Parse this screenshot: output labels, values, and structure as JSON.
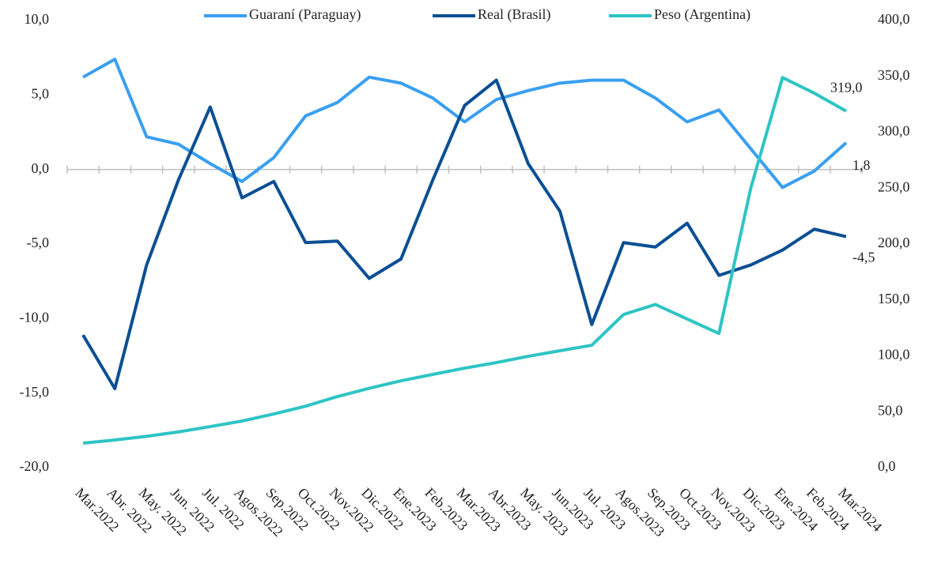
{
  "chart_data": {
    "type": "line",
    "categories": [
      "Mar.2022",
      "Abr. 2022",
      "May. 2022",
      "Jun. 2022",
      "Jul. 2022",
      "Agos.2022",
      "Sep.2022",
      "Oct.2022",
      "Nov.2022",
      "Dic.2022",
      "Ene.2023",
      "Feb.2023",
      "Mar.2023",
      "Abr.2023",
      "May. 2023",
      "Jun.2023",
      "Jul. 2023",
      "Agos.2023",
      "Sep.2023",
      "Oct.2023",
      "Nov.2023",
      "Dic.2023",
      "Ene.2024",
      "Feb.2024",
      "Mar.2024"
    ],
    "series": [
      {
        "name": "Guaraní (Paraguay)",
        "color": "#3a9ff0",
        "values": [
          6.2,
          7.4,
          2.2,
          1.7,
          0.4,
          -0.8,
          0.8,
          3.6,
          4.5,
          6.2,
          5.8,
          4.8,
          3.2,
          4.7,
          5.3,
          5.8,
          6.0,
          6.0,
          4.8,
          3.2,
          4.0,
          1.4,
          -1.2,
          -0.1,
          1.8
        ],
        "value_labels": [
          null,
          null,
          null,
          null,
          null,
          null,
          null,
          null,
          null,
          null,
          null,
          null,
          null,
          null,
          null,
          null,
          null,
          null,
          null,
          null,
          null,
          null,
          null,
          null,
          "1,8"
        ]
      },
      {
        "name": "Real (Brasil)",
        "color": "#0b4f94",
        "values": [
          -11.1,
          -14.7,
          -6.4,
          -0.7,
          4.2,
          -1.9,
          -0.8,
          -4.9,
          -4.8,
          -7.3,
          -6.0,
          -0.7,
          4.3,
          6.0,
          0.4,
          -2.8,
          -10.4,
          -4.9,
          -5.2,
          -3.6,
          -7.1,
          -6.4,
          -5.4,
          -4.0,
          -4.5
        ],
        "value_labels": [
          null,
          null,
          null,
          null,
          null,
          null,
          null,
          null,
          null,
          null,
          null,
          null,
          null,
          null,
          null,
          null,
          null,
          null,
          null,
          null,
          null,
          null,
          null,
          null,
          "-4,5"
        ]
      },
      {
        "name": "Peso (Argentina)",
        "color": "#2ec4c4",
        "axis": "y2",
        "values": [
          21.9,
          24.7,
          28,
          32,
          36.7,
          41.7,
          48,
          55,
          63.6,
          71,
          77.7,
          83.4,
          89,
          94,
          99.6,
          104.6,
          109.5,
          137,
          146,
          133,
          120,
          250,
          349,
          335,
          319
        ],
        "value_labels": [
          null,
          null,
          null,
          null,
          null,
          null,
          null,
          null,
          null,
          null,
          null,
          null,
          null,
          null,
          null,
          null,
          null,
          null,
          null,
          null,
          null,
          null,
          null,
          null,
          "319,0"
        ]
      }
    ],
    "ylim": [
      -20,
      10
    ],
    "yticks": [
      {
        "value": -20,
        "label": "-20,0"
      },
      {
        "value": -15,
        "label": "-15,0"
      },
      {
        "value": -10,
        "label": "-10,0"
      },
      {
        "value": -5,
        "label": "-5,0"
      },
      {
        "value": 0,
        "label": "0,0"
      },
      {
        "value": 5,
        "label": "5,0"
      },
      {
        "value": 10,
        "label": "10,0"
      }
    ],
    "y2lim": [
      0,
      400
    ],
    "y2ticks": [
      {
        "value": 0,
        "label": "0,0"
      },
      {
        "value": 50,
        "label": "50,0"
      },
      {
        "value": 100,
        "label": "100,0"
      },
      {
        "value": 150,
        "label": "150,0"
      },
      {
        "value": 200,
        "label": "200,0"
      },
      {
        "value": 250,
        "label": "250,0"
      },
      {
        "value": 300,
        "label": "300,0"
      },
      {
        "value": 350,
        "label": "350,0"
      },
      {
        "value": 400,
        "label": "400,0"
      }
    ],
    "legend": "top"
  }
}
